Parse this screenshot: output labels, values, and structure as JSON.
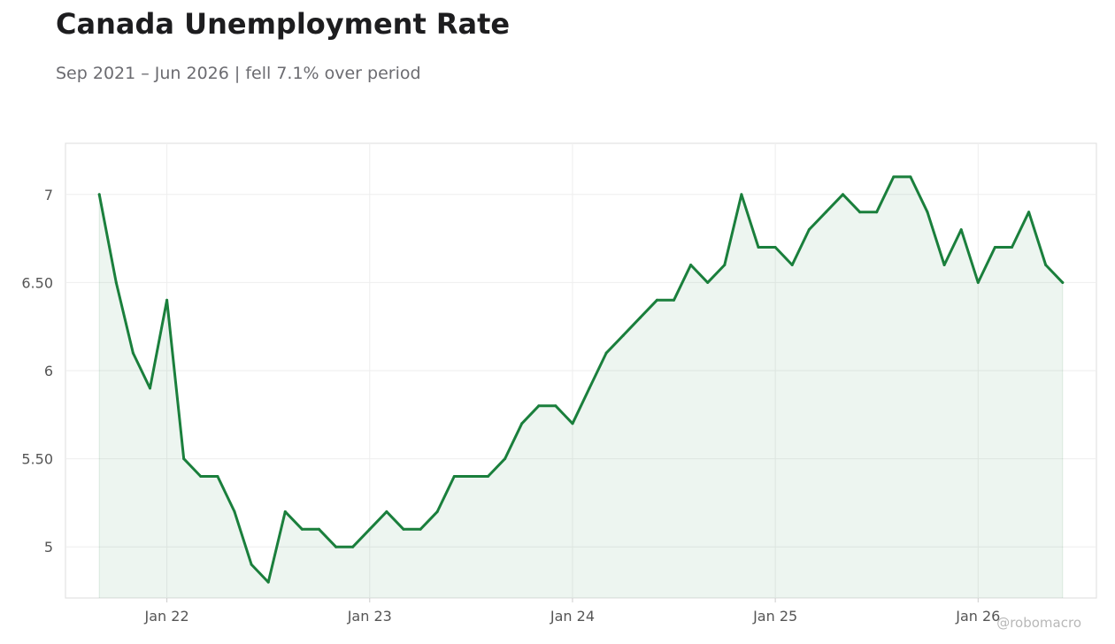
{
  "header": {
    "title": "Canada Unemployment Rate",
    "subtitle": "Sep 2021 – Jun 2026 | fell 7.1% over period"
  },
  "watermark": "@robomacro",
  "colors": {
    "line": "#1a7f3c",
    "fill": "#1a7f3c",
    "grid": "#eeeeee",
    "frame": "#dddddd"
  },
  "chart_data": {
    "type": "area",
    "title": "Canada Unemployment Rate",
    "subtitle": "Sep 2021 – Jun 2026 | fell 7.1% over period",
    "xlabel": "",
    "ylabel": "",
    "grid": true,
    "x_start": "2021-09",
    "xlim": [
      "2021-07",
      "2026-08"
    ],
    "ylim": [
      4.71,
      7.29
    ],
    "yticks": [
      5,
      5.5,
      6,
      6.5,
      7
    ],
    "ytick_labels": [
      "5",
      "5.50",
      "6",
      "6.50",
      "7"
    ],
    "xticks": [
      "2022-01",
      "2023-01",
      "2024-01",
      "2025-01",
      "2026-01"
    ],
    "xtick_labels": [
      "Jan 22",
      "Jan 23",
      "Jan 24",
      "Jan 25",
      "Jan 26"
    ],
    "series": [
      {
        "x": [
          "2021-09",
          "2021-10",
          "2021-11",
          "2021-12",
          "2022-01",
          "2022-02",
          "2022-03",
          "2022-04",
          "2022-05",
          "2022-06",
          "2022-07",
          "2022-08",
          "2022-09",
          "2022-10",
          "2022-11",
          "2022-12",
          "2023-01",
          "2023-02",
          "2023-03",
          "2023-04",
          "2023-05",
          "2023-06",
          "2023-07",
          "2023-08",
          "2023-09",
          "2023-10",
          "2023-11",
          "2023-12",
          "2024-01",
          "2024-02",
          "2024-03",
          "2024-04",
          "2024-05",
          "2024-06",
          "2024-07",
          "2024-08",
          "2024-09",
          "2024-10",
          "2024-11",
          "2024-12",
          "2025-01",
          "2025-02",
          "2025-03",
          "2025-04",
          "2025-05",
          "2025-06",
          "2025-07",
          "2025-08",
          "2025-09",
          "2025-10",
          "2025-11",
          "2025-12",
          "2026-01",
          "2026-02",
          "2026-03",
          "2026-04",
          "2026-05",
          "2026-06"
        ],
        "values": [
          7.0,
          6.5,
          6.1,
          5.9,
          6.4,
          5.5,
          5.4,
          5.4,
          5.2,
          4.9,
          4.8,
          5.2,
          5.1,
          5.1,
          5.0,
          5.0,
          5.1,
          5.2,
          5.1,
          5.1,
          5.2,
          5.4,
          5.4,
          5.4,
          5.5,
          5.7,
          5.8,
          5.8,
          5.7,
          5.9,
          6.1,
          6.2,
          6.3,
          6.4,
          6.4,
          6.6,
          6.5,
          6.6,
          7.0,
          6.7,
          6.7,
          6.6,
          6.8,
          6.9,
          7.0,
          6.9,
          6.9,
          7.1,
          7.1,
          6.9,
          6.6,
          6.8,
          6.5,
          6.7,
          6.7,
          6.9,
          6.6,
          6.5
        ]
      }
    ]
  }
}
